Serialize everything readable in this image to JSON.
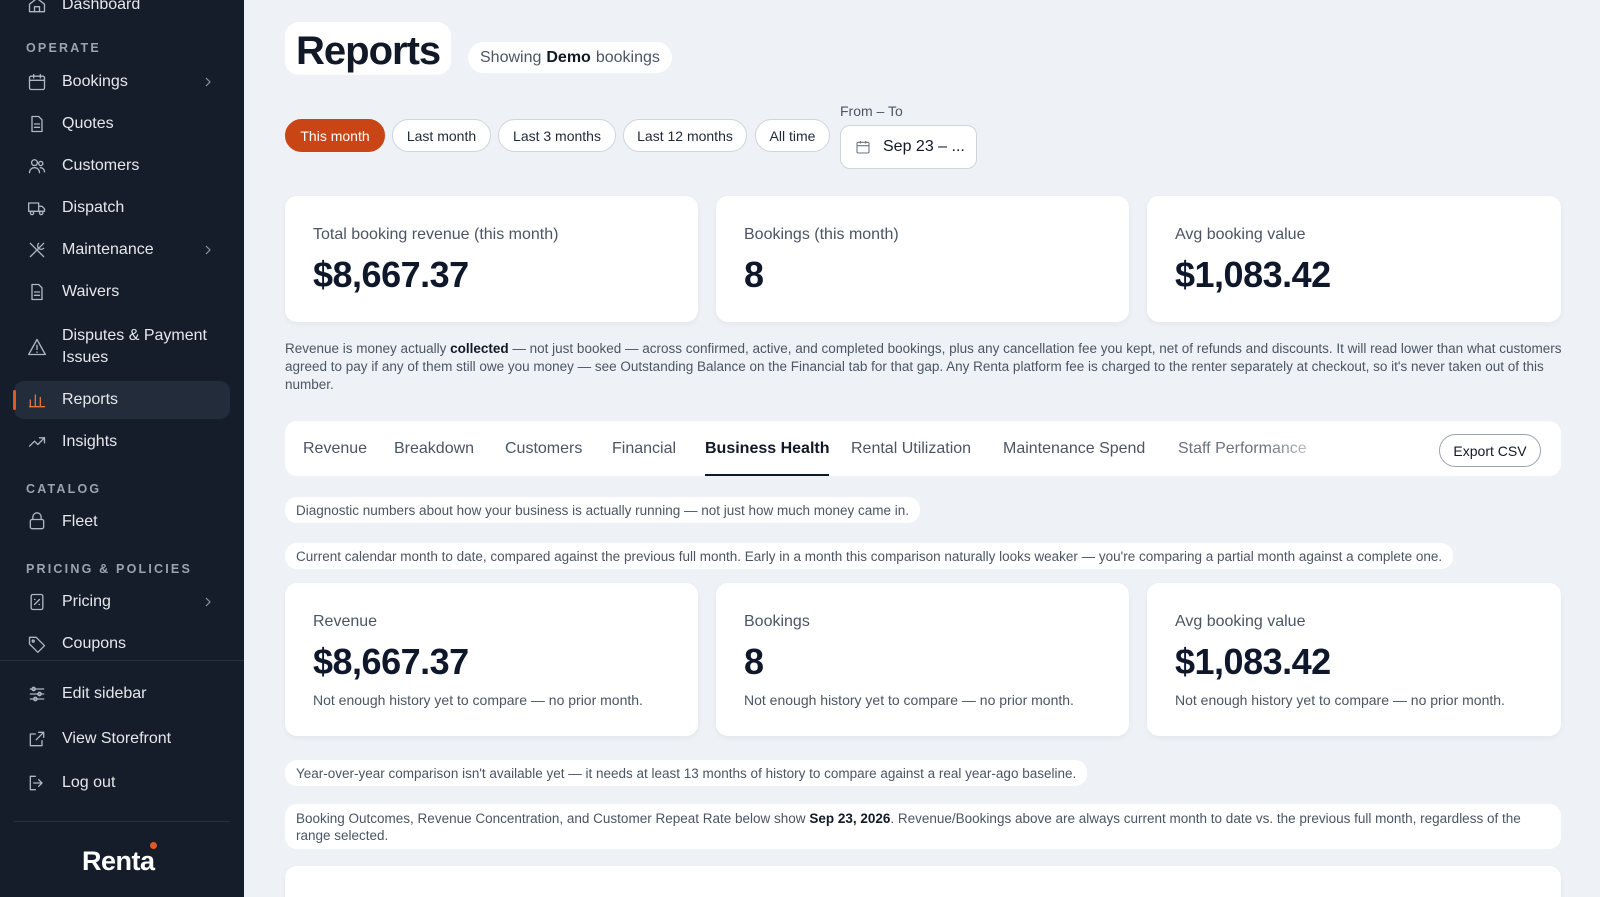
{
  "sidebar": {
    "top_item": "Dashboard",
    "sections": {
      "operate": "OPERATE",
      "catalog": "CATALOG",
      "pricing": "PRICING & POLICIES"
    },
    "items": {
      "bookings": "Bookings",
      "quotes": "Quotes",
      "customers": "Customers",
      "dispatch": "Dispatch",
      "maintenance": "Maintenance",
      "waivers": "Waivers",
      "disputes_line1": "Disputes & Payment",
      "disputes_line2": "Issues",
      "reports": "Reports",
      "insights": "Insights",
      "fleet": "Fleet",
      "pricing": "Pricing",
      "coupons": "Coupons",
      "edit_sidebar": "Edit sidebar",
      "view_storefront": "View Storefront",
      "log_out": "Log out"
    },
    "logo": "Renta",
    "accent_color": "#e05a25"
  },
  "header": {
    "title": "Reports",
    "showing_prefix": "Showing",
    "showing_value": "Demo",
    "showing_suffix": "bookings"
  },
  "range": {
    "options": [
      "This month",
      "Last month",
      "Last 3 months",
      "Last 12 months",
      "All time"
    ],
    "selected": "This month",
    "from_to_label": "From – To",
    "date_value": "Sep 23 – ..."
  },
  "summary_cards": [
    {
      "label": "Total booking revenue (this month)",
      "value": "$8,667.37"
    },
    {
      "label": "Bookings (this month)",
      "value": "8"
    },
    {
      "label": "Avg booking value",
      "value": "$1,083.42"
    }
  ],
  "revenue_note": {
    "part1": "Revenue is money actually",
    "bold": "collected",
    "part2": "— not just booked — across confirmed, active, and completed bookings, plus any cancellation fee you kept, net of refunds and discounts. It will read lower than what customers agreed to pay if any of them still owe you money — see Outstanding Balance on the Financial tab for that gap. Any Renta platform fee is charged to the renter separately at checkout, so it's never taken out of this number."
  },
  "tabs": {
    "items": [
      "Revenue",
      "Breakdown",
      "Customers",
      "Financial",
      "Business Health",
      "Rental Utilization",
      "Maintenance Spend",
      "Staff Performance"
    ],
    "active": "Business Health",
    "export_label": "Export CSV"
  },
  "business_health": {
    "diagnostic_note": "Diagnostic numbers about how your business is actually running — not just how much money came in.",
    "month_note": "Current calendar month to date, compared against the previous full month. Early in a month this comparison naturally looks weaker — you're comparing a partial month against a complete one.",
    "cards": [
      {
        "label": "Revenue",
        "value": "$8,667.37",
        "sub": "Not enough history yet to compare — no prior month."
      },
      {
        "label": "Bookings",
        "value": "8",
        "sub": "Not enough history yet to compare — no prior month."
      },
      {
        "label": "Avg booking value",
        "value": "$1,083.42",
        "sub": "Not enough history yet to compare — no prior month."
      }
    ],
    "yoy_note": "Year-over-year comparison isn't available yet — it needs at least 13 months of history to compare against a real year-ago baseline.",
    "outcomes_part1": "Booking Outcomes, Revenue Concentration, and Customer Repeat Rate below show",
    "outcomes_date": "Sep 23, 2026",
    "outcomes_part2": ". Revenue/Bookings above are always current month to date vs. the previous full month, regardless of the range selected."
  }
}
